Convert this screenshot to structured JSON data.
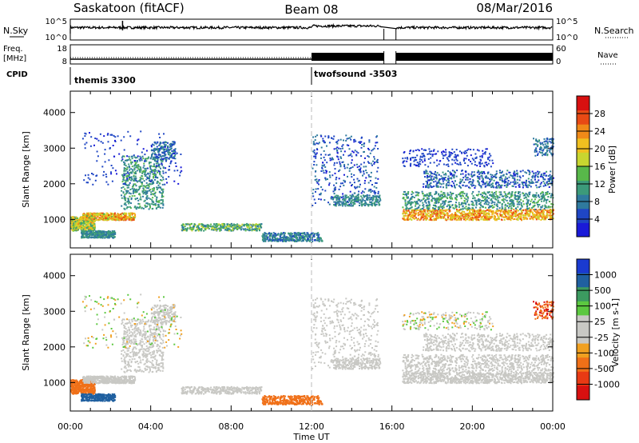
{
  "header": {
    "title_left": "Saskatoon (fitACF)",
    "title_mid": "Beam 08",
    "title_right": "08/Mar/2016"
  },
  "top_panels": {
    "nsky_label": "N.Sky",
    "nsearch_label": "N.Search",
    "sky_ticks": [
      "10^5",
      "10^0"
    ],
    "search_ticks": [
      "10^5",
      "10^0"
    ],
    "freq_label_1": "Freq.",
    "freq_label_2": "[MHz]",
    "freq_ticks": [
      "18",
      "8"
    ],
    "nave_label": "Nave",
    "nave_ticks": [
      "60",
      "0"
    ],
    "cpid_label": "CPID",
    "cpid_1": "themis 3300",
    "cpid_2": "twofsound -3503"
  },
  "chart_data": [
    {
      "type": "heatmap",
      "title": "",
      "ylabel": "Slant Range [km]",
      "xlabel": "Time UT",
      "x_ticks": [
        "00:00",
        "04:00",
        "08:00",
        "12:00",
        "16:00",
        "20:00",
        "00:00"
      ],
      "y_ticks": [
        1000,
        2000,
        3000,
        4000
      ],
      "ylim": [
        200,
        4600
      ],
      "xlim_hours": [
        0,
        24
      ],
      "colorbar": {
        "label": "Power [dB]",
        "ticks": [
          "4",
          "8",
          "12",
          "16",
          "20",
          "24",
          "28"
        ],
        "colors": [
          "#1a1ad8",
          "#1f46c4",
          "#2f7a9e",
          "#3c9a7a",
          "#58b84a",
          "#c8d630",
          "#f0c020",
          "#f08a18",
          "#e84a14",
          "#d81010"
        ]
      }
    },
    {
      "type": "heatmap",
      "title": "",
      "ylabel": "Slant Range [km]",
      "xlabel": "Time UT",
      "x_ticks": [
        "00:00",
        "04:00",
        "08:00",
        "12:00",
        "16:00",
        "20:00",
        "00:00"
      ],
      "y_ticks": [
        1000,
        2000,
        3000,
        4000
      ],
      "ylim": [
        200,
        4600
      ],
      "xlim_hours": [
        0,
        24
      ],
      "colorbar": {
        "label": "Velocity [m s-1]",
        "ticks": [
          "1000",
          "500",
          "100",
          "25",
          "-25",
          "-100",
          "-500",
          "-1000"
        ],
        "colors": [
          "#1a3ad0",
          "#2060a0",
          "#3c9a60",
          "#5cc840",
          "#c8c8c4",
          "#c8c8c4",
          "#f0a020",
          "#f07018",
          "#e83a14",
          "#d81010"
        ]
      }
    }
  ]
}
